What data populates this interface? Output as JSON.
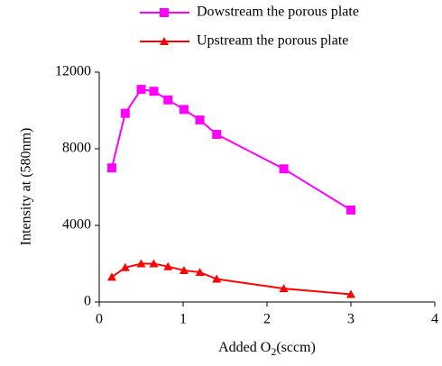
{
  "chart_data": {
    "type": "line",
    "x_label": [
      "Added O",
      "2",
      "(sccm)"
    ],
    "y_label": "Intensity at (580nm)",
    "xlim": [
      0,
      4
    ],
    "xticks": [
      0,
      1,
      2,
      3,
      4
    ],
    "ylim": [
      0,
      12000
    ],
    "yticks": [
      0,
      4000,
      8000,
      12000
    ],
    "series": [
      {
        "name": "Dowstream the porous plate",
        "color": "#ff00ff",
        "marker": "square",
        "x": [
          0.15,
          0.31,
          0.5,
          0.65,
          0.82,
          1.01,
          1.2,
          1.4,
          2.2,
          3.0
        ],
        "values": [
          7000,
          9850,
          11100,
          11000,
          10550,
          10050,
          9500,
          8750,
          6950,
          4800
        ]
      },
      {
        "name": "Upstream the porous plate",
        "color": "#ff0000",
        "marker": "triangle",
        "x": [
          0.15,
          0.31,
          0.5,
          0.65,
          0.82,
          1.01,
          1.2,
          1.4,
          2.2,
          3.0
        ],
        "values": [
          1300,
          1800,
          2000,
          2000,
          1850,
          1650,
          1550,
          1200,
          700,
          400
        ]
      }
    ]
  }
}
